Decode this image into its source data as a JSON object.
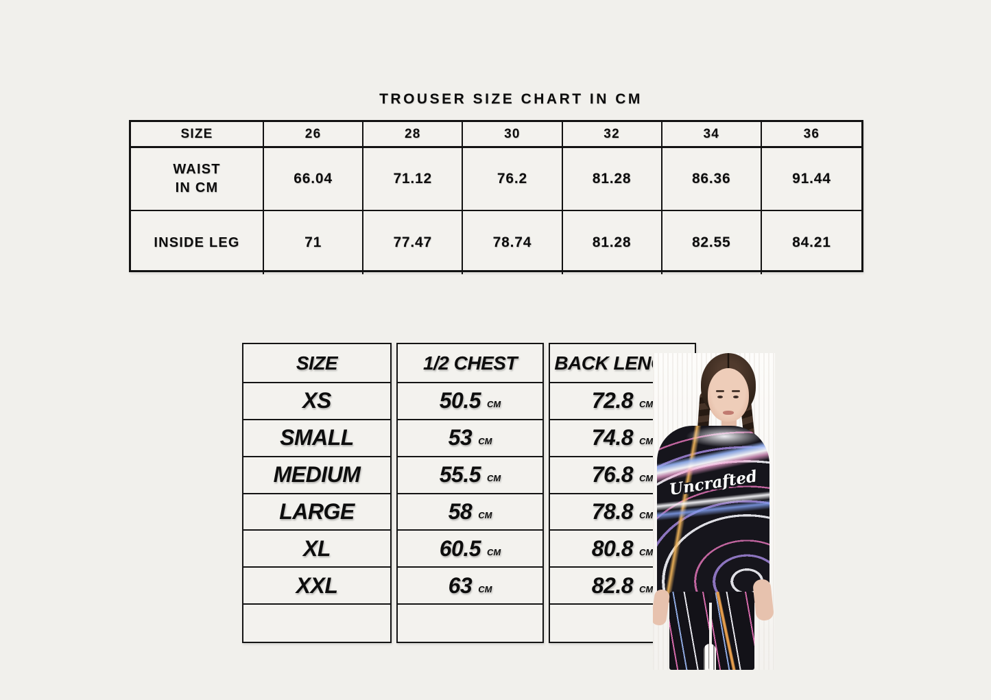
{
  "page": {
    "title": "TROUSER SIZE CHART IN CM",
    "background_color": "#f1f0ec",
    "border_color": "#121212",
    "text_color": "#0d0d0d"
  },
  "trouser_chart": {
    "columns": [
      "SIZE",
      "26",
      "28",
      "30",
      "32",
      "34",
      "36"
    ],
    "rows": [
      {
        "label_lines": [
          "WAIST",
          "IN CM"
        ],
        "values": [
          "66.04",
          "71.12",
          "76.2",
          "81.28",
          "86.36",
          "91.44"
        ]
      },
      {
        "label_lines": [
          "INSIDE LEG"
        ],
        "values": [
          "71",
          "77.47",
          "78.74",
          "81.28",
          "82.55",
          "84.21"
        ]
      }
    ]
  },
  "garment_chart": {
    "headers": {
      "size": "SIZE",
      "chest": "1/2 CHEST",
      "back": "BACK LENGTH"
    },
    "unit": "CM",
    "rows": [
      {
        "size": "XS",
        "chest": "50.5",
        "back": "72.8"
      },
      {
        "size": "SMALL",
        "chest": "53",
        "back": "74.8"
      },
      {
        "size": "MEDIUM",
        "chest": "55.5",
        "back": "76.8"
      },
      {
        "size": "LARGE",
        "chest": "58",
        "back": "78.8"
      },
      {
        "size": "XL",
        "chest": "60.5",
        "back": "80.8"
      },
      {
        "size": "XXL",
        "chest": "63",
        "back": "82.8"
      }
    ]
  },
  "photo": {
    "shirt_text": "Uncrafted"
  }
}
